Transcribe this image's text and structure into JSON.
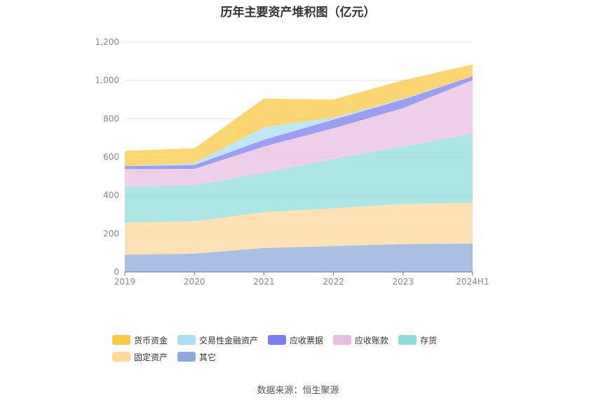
{
  "title": "历年主要资产堆积图（亿元）",
  "source_label": "数据来源：",
  "source_name": "恒生聚源",
  "chart_data": {
    "type": "area",
    "stacked": true,
    "title": "历年主要资产堆积图（亿元）",
    "categories": [
      "2019",
      "2020",
      "2021",
      "2022",
      "2023",
      "2024H1"
    ],
    "ylim": [
      0,
      1200
    ],
    "yticks": [
      0,
      200,
      400,
      600,
      800,
      1000,
      1200
    ],
    "ytick_labels": [
      "0",
      "200",
      "400",
      "600",
      "800",
      "1,000",
      "1,200"
    ],
    "grid": true,
    "legend_position": "bottom",
    "series": [
      {
        "name": "其它",
        "color": "#8eaadb",
        "values": [
          90,
          95,
          125,
          135,
          145,
          148
        ]
      },
      {
        "name": "固定资产",
        "color": "#ffd89a",
        "values": [
          167,
          170,
          187,
          197,
          210,
          213
        ]
      },
      {
        "name": "存货",
        "color": "#8fdcdb",
        "values": [
          188,
          188,
          205,
          258,
          300,
          360
        ]
      },
      {
        "name": "应收账款",
        "color": "#e8bde0",
        "values": [
          92,
          85,
          138,
          160,
          200,
          280
        ]
      },
      {
        "name": "应收票据",
        "color": "#7b7ef0",
        "values": [
          15,
          20,
          35,
          45,
          45,
          20
        ]
      },
      {
        "name": "交易性金融资产",
        "color": "#a9def5",
        "values": [
          0,
          10,
          65,
          10,
          5,
          0
        ]
      },
      {
        "name": "货币资金",
        "color": "#fcc845",
        "values": [
          80,
          77,
          150,
          95,
          95,
          62
        ]
      }
    ],
    "legend_order": [
      "货币资金",
      "交易性金融资产",
      "应收票据",
      "应收账款",
      "存货",
      "固定资产",
      "其它"
    ]
  }
}
